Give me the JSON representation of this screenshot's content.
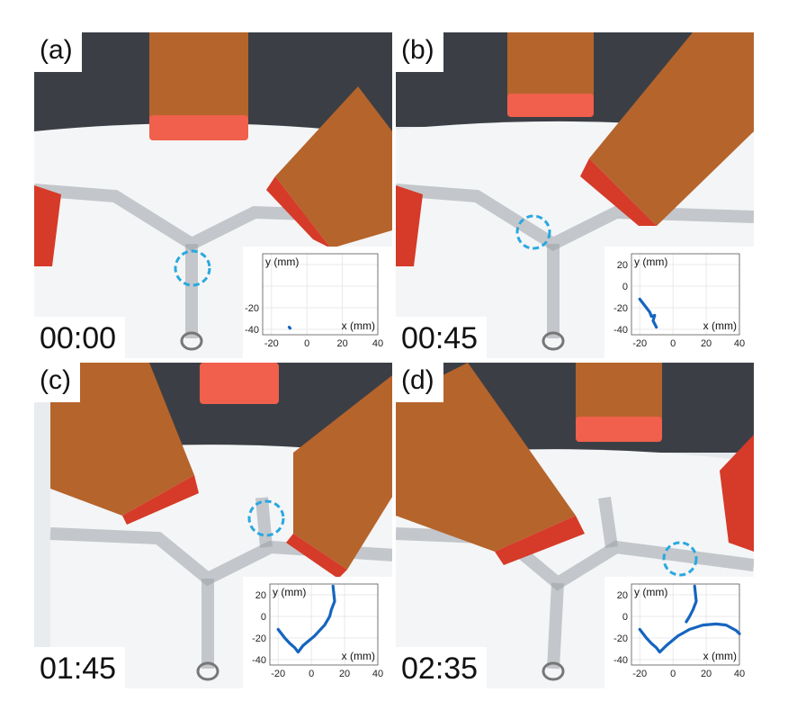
{
  "panels": [
    {
      "letter": "(a)",
      "time": "00:00"
    },
    {
      "letter": "(b)",
      "time": "00:45"
    },
    {
      "letter": "(c)",
      "time": "01:45"
    },
    {
      "letter": "(d)",
      "time": "02:35"
    }
  ],
  "colors": {
    "trajectory": "#1565c0",
    "marker_circle": "#29a8e0",
    "coil_copper": "#b5642c",
    "coil_cap": "#f0604c"
  },
  "chart_data": [
    {
      "type": "line",
      "xlabel": "x (mm)",
      "ylabel": "y (mm)",
      "xlim": [
        -25,
        40
      ],
      "ylim": [
        -45,
        30
      ],
      "xticks": [
        -20,
        0,
        20,
        40
      ],
      "yticks": [
        -40,
        -20
      ],
      "series": [
        {
          "x": [
            -10,
            -9.5
          ],
          "y": [
            -38,
            -39
          ]
        }
      ]
    },
    {
      "type": "line",
      "xlabel": "x (mm)",
      "ylabel": "y (mm)",
      "xlim": [
        -25,
        40
      ],
      "ylim": [
        -45,
        30
      ],
      "xticks": [
        -20,
        0,
        20,
        40
      ],
      "yticks": [
        20,
        0,
        -20,
        -40
      ],
      "series": [
        {
          "x": [
            -20,
            -17,
            -14,
            -13,
            -11,
            -12,
            -10
          ],
          "y": [
            -12,
            -18,
            -24,
            -28,
            -27,
            -32,
            -38
          ]
        }
      ]
    },
    {
      "type": "line",
      "xlabel": "x (mm)",
      "ylabel": "y (mm)",
      "xlim": [
        -25,
        40
      ],
      "ylim": [
        -45,
        30
      ],
      "xticks": [
        -20,
        0,
        20,
        40
      ],
      "yticks": [
        20,
        0,
        -20,
        -40
      ],
      "series": [
        {
          "x": [
            -20,
            -16,
            -13,
            -10,
            -8,
            -5,
            2,
            8,
            11,
            12,
            14,
            13
          ],
          "y": [
            -12,
            -20,
            -25,
            -29,
            -33,
            -27,
            -18,
            -8,
            0,
            6,
            14,
            28
          ]
        }
      ]
    },
    {
      "type": "line",
      "xlabel": "x (mm)",
      "ylabel": "y (mm)",
      "xlim": [
        -25,
        40
      ],
      "ylim": [
        -45,
        30
      ],
      "xticks": [
        -20,
        0,
        20,
        40
      ],
      "yticks": [
        20,
        0,
        -20,
        -40
      ],
      "series": [
        {
          "x": [
            -20,
            -16,
            -13,
            -10,
            -8,
            -4,
            3,
            10,
            18,
            26,
            32,
            38,
            40
          ],
          "y": [
            -12,
            -20,
            -25,
            -29,
            -33,
            -27,
            -18,
            -12,
            -8,
            -7,
            -8,
            -13,
            -16
          ]
        },
        {
          "x": [
            8,
            10,
            12,
            14,
            13
          ],
          "y": [
            -5,
            0,
            6,
            14,
            28
          ]
        }
      ]
    }
  ]
}
